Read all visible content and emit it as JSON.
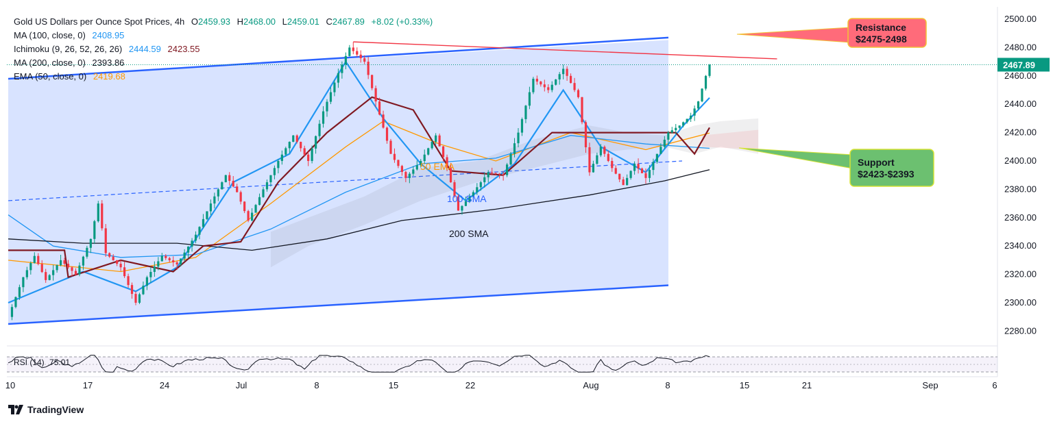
{
  "header": {
    "title": "Gold US Dollars per Ounce Spot Prices, 4h",
    "open_label": "O",
    "open": "2459.93",
    "high_label": "H",
    "high": "2468.00",
    "low_label": "L",
    "low": "2459.01",
    "close_label": "C",
    "close": "2467.89",
    "change": "+8.02 (+0.33%)"
  },
  "indicators": [
    {
      "label": "MA (100, close, 0)",
      "value": "2408.95",
      "color": "#2196f3"
    },
    {
      "label": "Ichimoku (9, 26, 52, 26, 26)",
      "value": "2444.59",
      "value2": "2423.55",
      "color": "#2196f3",
      "color2": "#801922"
    },
    {
      "label": "MA (200, close, 0)",
      "value": "2393.86",
      "color": "#131722"
    },
    {
      "label": "EMA (50, close, 0)",
      "value": "2419.68",
      "color": "#ff9800"
    }
  ],
  "annotations": {
    "resistance": {
      "title": "Resistance",
      "range": "$2475-2498"
    },
    "support": {
      "title": "Support",
      "range": "$2423-$2393"
    },
    "ema_label": "50 EMA",
    "sma100_label": "100 SMA",
    "sma200_label": "200 SMA"
  },
  "rsi": {
    "label": "RSI (14)",
    "value": "75.01"
  },
  "brand": "TradingView",
  "chart_data": {
    "type": "candlestick",
    "title": "Gold US Dollars per Ounce Spot Prices, 4h",
    "ylim": [
      2270,
      2510
    ],
    "y_ticks": [
      "2500.00",
      "2480.00",
      "2460.00",
      "2440.00",
      "2420.00",
      "2400.00",
      "2380.00",
      "2360.00",
      "2340.00",
      "2320.00",
      "2300.00",
      "2280.00"
    ],
    "last_price": "2467.89",
    "x_ticks": [
      "10",
      "17",
      "24",
      "Jul",
      "8",
      "15",
      "22",
      "Aug",
      "8",
      "15",
      "21",
      "Sep",
      "6"
    ],
    "price_path": [
      {
        "t": 0,
        "p": 2290
      },
      {
        "t": 4,
        "p": 2318
      },
      {
        "t": 7,
        "p": 2333
      },
      {
        "t": 10,
        "p": 2316
      },
      {
        "t": 14,
        "p": 2330
      },
      {
        "t": 18,
        "p": 2320
      },
      {
        "t": 22,
        "p": 2345
      },
      {
        "t": 24,
        "p": 2370
      },
      {
        "t": 26,
        "p": 2335
      },
      {
        "t": 30,
        "p": 2325
      },
      {
        "t": 34,
        "p": 2300
      },
      {
        "t": 37,
        "p": 2318
      },
      {
        "t": 41,
        "p": 2333
      },
      {
        "t": 45,
        "p": 2327
      },
      {
        "t": 50,
        "p": 2348
      },
      {
        "t": 54,
        "p": 2370
      },
      {
        "t": 58,
        "p": 2390
      },
      {
        "t": 61,
        "p": 2378
      },
      {
        "t": 64,
        "p": 2358
      },
      {
        "t": 68,
        "p": 2380
      },
      {
        "t": 72,
        "p": 2400
      },
      {
        "t": 76,
        "p": 2418
      },
      {
        "t": 80,
        "p": 2400
      },
      {
        "t": 84,
        "p": 2435
      },
      {
        "t": 88,
        "p": 2462
      },
      {
        "t": 91,
        "p": 2480
      },
      {
        "t": 95,
        "p": 2470
      },
      {
        "t": 98,
        "p": 2442
      },
      {
        "t": 102,
        "p": 2405
      },
      {
        "t": 106,
        "p": 2388
      },
      {
        "t": 110,
        "p": 2400
      },
      {
        "t": 114,
        "p": 2418
      },
      {
        "t": 117,
        "p": 2395
      },
      {
        "t": 120,
        "p": 2365
      },
      {
        "t": 124,
        "p": 2378
      },
      {
        "t": 128,
        "p": 2392
      },
      {
        "t": 132,
        "p": 2390
      },
      {
        "t": 136,
        "p": 2420
      },
      {
        "t": 140,
        "p": 2458
      },
      {
        "t": 144,
        "p": 2450
      },
      {
        "t": 148,
        "p": 2465
      },
      {
        "t": 152,
        "p": 2445
      },
      {
        "t": 155,
        "p": 2392
      },
      {
        "t": 158,
        "p": 2410
      },
      {
        "t": 161,
        "p": 2395
      },
      {
        "t": 164,
        "p": 2383
      },
      {
        "t": 167,
        "p": 2398
      },
      {
        "t": 170,
        "p": 2388
      },
      {
        "t": 173,
        "p": 2405
      },
      {
        "t": 176,
        "p": 2420
      },
      {
        "t": 179,
        "p": 2425
      },
      {
        "t": 182,
        "p": 2432
      },
      {
        "t": 184,
        "p": 2442
      },
      {
        "t": 186,
        "p": 2460
      },
      {
        "t": 187,
        "p": 2467.89
      }
    ],
    "series": [
      {
        "name": "EMA 50",
        "color": "#ff9800",
        "points": [
          {
            "t": 0,
            "p": 2330
          },
          {
            "t": 30,
            "p": 2322
          },
          {
            "t": 50,
            "p": 2332
          },
          {
            "t": 70,
            "p": 2370
          },
          {
            "t": 90,
            "p": 2410
          },
          {
            "t": 100,
            "p": 2428
          },
          {
            "t": 115,
            "p": 2412
          },
          {
            "t": 130,
            "p": 2400
          },
          {
            "t": 150,
            "p": 2420
          },
          {
            "t": 170,
            "p": 2408
          },
          {
            "t": 187,
            "p": 2419.68
          }
        ]
      },
      {
        "name": "MA 100",
        "color": "#2196f3",
        "points": [
          {
            "t": 0,
            "p": 2362
          },
          {
            "t": 12,
            "p": 2340
          },
          {
            "t": 30,
            "p": 2332
          },
          {
            "t": 50,
            "p": 2334
          },
          {
            "t": 70,
            "p": 2352
          },
          {
            "t": 90,
            "p": 2378
          },
          {
            "t": 110,
            "p": 2398
          },
          {
            "t": 130,
            "p": 2402
          },
          {
            "t": 150,
            "p": 2418
          },
          {
            "t": 170,
            "p": 2412
          },
          {
            "t": 187,
            "p": 2408.95
          }
        ]
      },
      {
        "name": "MA 200",
        "color": "#131722",
        "points": [
          {
            "t": 0,
            "p": 2345
          },
          {
            "t": 20,
            "p": 2342
          },
          {
            "t": 45,
            "p": 2342
          },
          {
            "t": 65,
            "p": 2337
          },
          {
            "t": 85,
            "p": 2345
          },
          {
            "t": 105,
            "p": 2358
          },
          {
            "t": 130,
            "p": 2366
          },
          {
            "t": 155,
            "p": 2376
          },
          {
            "t": 175,
            "p": 2386
          },
          {
            "t": 187,
            "p": 2393.86
          }
        ]
      },
      {
        "name": "Ichimoku Conversion",
        "color": "#2196f3",
        "points": [
          {
            "t": 0,
            "p": 2300
          },
          {
            "t": 20,
            "p": 2322
          },
          {
            "t": 34,
            "p": 2308
          },
          {
            "t": 45,
            "p": 2325
          },
          {
            "t": 60,
            "p": 2385
          },
          {
            "t": 75,
            "p": 2405
          },
          {
            "t": 90,
            "p": 2470
          },
          {
            "t": 100,
            "p": 2430
          },
          {
            "t": 110,
            "p": 2398
          },
          {
            "t": 122,
            "p": 2372
          },
          {
            "t": 135,
            "p": 2398
          },
          {
            "t": 148,
            "p": 2450
          },
          {
            "t": 158,
            "p": 2410
          },
          {
            "t": 170,
            "p": 2392
          },
          {
            "t": 180,
            "p": 2425
          },
          {
            "t": 187,
            "p": 2444.59
          }
        ]
      },
      {
        "name": "Ichimoku Base",
        "color": "#801922",
        "points": [
          {
            "t": 0,
            "p": 2337
          },
          {
            "t": 15,
            "p": 2337
          },
          {
            "t": 16,
            "p": 2318
          },
          {
            "t": 30,
            "p": 2330
          },
          {
            "t": 44,
            "p": 2322
          },
          {
            "t": 52,
            "p": 2340
          },
          {
            "t": 62,
            "p": 2343
          },
          {
            "t": 72,
            "p": 2385
          },
          {
            "t": 85,
            "p": 2420
          },
          {
            "t": 97,
            "p": 2445
          },
          {
            "t": 108,
            "p": 2436
          },
          {
            "t": 118,
            "p": 2393
          },
          {
            "t": 132,
            "p": 2390
          },
          {
            "t": 145,
            "p": 2420
          },
          {
            "t": 158,
            "p": 2420
          },
          {
            "t": 178,
            "p": 2420
          },
          {
            "t": 183,
            "p": 2405
          },
          {
            "t": 187,
            "p": 2423.55
          }
        ]
      }
    ],
    "channel": {
      "upper": [
        {
          "t": 0,
          "p": 2458
        },
        {
          "t": 187,
          "p": 2487
        }
      ],
      "lower": [
        {
          "t": 0,
          "p": 2285
        },
        {
          "t": 187,
          "p": 2314
        }
      ],
      "midline": [
        {
          "t": 0,
          "p": 2372
        },
        {
          "t": 187,
          "p": 2400
        }
      ]
    },
    "resistance_trendline": [
      {
        "t": 92,
        "p": 2484
      },
      {
        "t": 205,
        "p": 2472
      }
    ],
    "rsi_value": 75.01
  }
}
